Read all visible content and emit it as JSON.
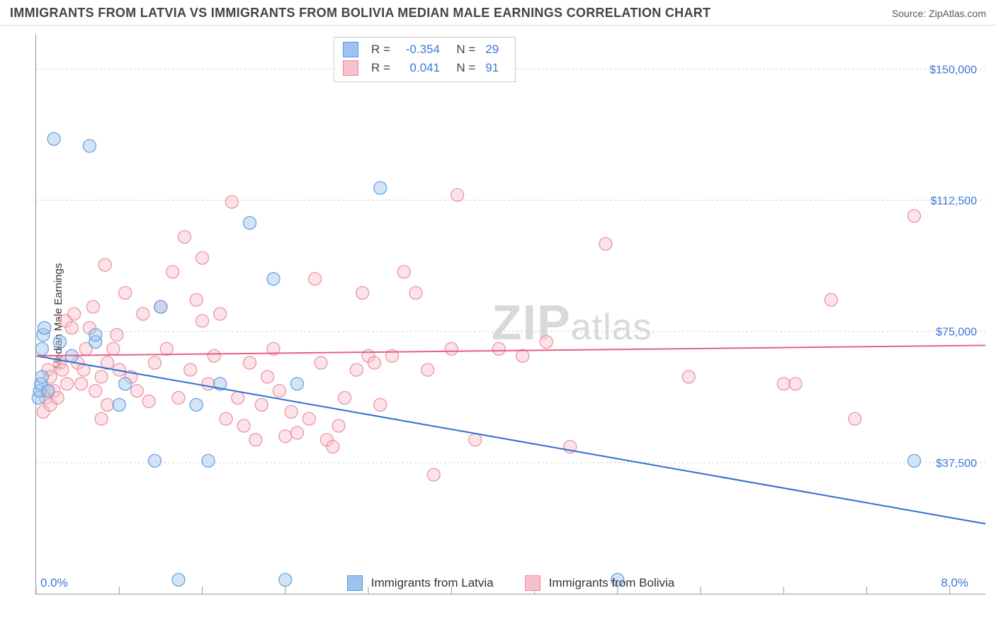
{
  "title": "IMMIGRANTS FROM LATVIA VS IMMIGRANTS FROM BOLIVIA MEDIAN MALE EARNINGS CORRELATION CHART",
  "source_prefix": "Source: ",
  "source_name": "ZipAtlas.com",
  "ylabel": "Median Male Earnings",
  "watermark": "ZIPatlas",
  "chart": {
    "type": "scatter",
    "xlim": [
      0,
      8
    ],
    "ylim": [
      0,
      160000
    ],
    "x_tick_positions": [
      0,
      0.7,
      1.4,
      2.1,
      2.8,
      3.5,
      4.2,
      4.9,
      5.6,
      6.3,
      7.0,
      7.7
    ],
    "y_gridlines": [
      37500,
      75000,
      112500,
      150000
    ],
    "y_ticklabels": [
      "$37,500",
      "$75,000",
      "$112,500",
      "$150,000"
    ],
    "x_min_label": "0.0%",
    "x_max_label": "8.0%",
    "background_color": "#ffffff",
    "grid_color": "#cfcfcf",
    "axis_color": "#999999",
    "tick_label_color": "#3c78d8",
    "point_radius": 9,
    "series": [
      {
        "key": "latvia",
        "name": "Immigrants from Latvia",
        "color_fill": "#9dc3ee",
        "color_stroke": "#5a9bdc",
        "trend_color": "#2f6fd0",
        "R": "-0.354",
        "N": "29",
        "trend": {
          "x1": 0.0,
          "y1": 68000,
          "x2": 8.0,
          "y2": 20000
        },
        "points": [
          {
            "x": 0.02,
            "y": 56000
          },
          {
            "x": 0.03,
            "y": 58000
          },
          {
            "x": 0.04,
            "y": 60000
          },
          {
            "x": 0.05,
            "y": 70000
          },
          {
            "x": 0.06,
            "y": 74000
          },
          {
            "x": 0.07,
            "y": 76000
          },
          {
            "x": 0.1,
            "y": 58000
          },
          {
            "x": 0.15,
            "y": 130000
          },
          {
            "x": 0.2,
            "y": 72000
          },
          {
            "x": 0.3,
            "y": 68000
          },
          {
            "x": 0.45,
            "y": 128000
          },
          {
            "x": 0.5,
            "y": 72000
          },
          {
            "x": 0.5,
            "y": 74000
          },
          {
            "x": 0.7,
            "y": 54000
          },
          {
            "x": 0.75,
            "y": 60000
          },
          {
            "x": 1.0,
            "y": 38000
          },
          {
            "x": 1.05,
            "y": 82000
          },
          {
            "x": 1.2,
            "y": 4000
          },
          {
            "x": 1.35,
            "y": 54000
          },
          {
            "x": 1.45,
            "y": 38000
          },
          {
            "x": 1.55,
            "y": 60000
          },
          {
            "x": 1.8,
            "y": 106000
          },
          {
            "x": 2.0,
            "y": 90000
          },
          {
            "x": 2.1,
            "y": 4000
          },
          {
            "x": 2.2,
            "y": 60000
          },
          {
            "x": 2.9,
            "y": 116000
          },
          {
            "x": 4.9,
            "y": 4000
          },
          {
            "x": 7.4,
            "y": 38000
          },
          {
            "x": 0.05,
            "y": 62000
          }
        ]
      },
      {
        "key": "bolivia",
        "name": "Immigrants from Bolivia",
        "color_fill": "#f7c1cc",
        "color_stroke": "#eb8aa0",
        "trend_color": "#e75f84",
        "R": "0.041",
        "N": "91",
        "trend": {
          "x1": 0.0,
          "y1": 68000,
          "x2": 8.0,
          "y2": 71000
        },
        "points": [
          {
            "x": 0.06,
            "y": 52000
          },
          {
            "x": 0.08,
            "y": 56000
          },
          {
            "x": 0.1,
            "y": 58000
          },
          {
            "x": 0.1,
            "y": 64000
          },
          {
            "x": 0.12,
            "y": 62000
          },
          {
            "x": 0.12,
            "y": 54000
          },
          {
            "x": 0.15,
            "y": 58000
          },
          {
            "x": 0.18,
            "y": 56000
          },
          {
            "x": 0.2,
            "y": 66000
          },
          {
            "x": 0.22,
            "y": 64000
          },
          {
            "x": 0.25,
            "y": 78000
          },
          {
            "x": 0.26,
            "y": 60000
          },
          {
            "x": 0.3,
            "y": 76000
          },
          {
            "x": 0.32,
            "y": 80000
          },
          {
            "x": 0.35,
            "y": 66000
          },
          {
            "x": 0.38,
            "y": 60000
          },
          {
            "x": 0.4,
            "y": 64000
          },
          {
            "x": 0.42,
            "y": 70000
          },
          {
            "x": 0.45,
            "y": 76000
          },
          {
            "x": 0.48,
            "y": 82000
          },
          {
            "x": 0.5,
            "y": 58000
          },
          {
            "x": 0.55,
            "y": 62000
          },
          {
            "x": 0.58,
            "y": 94000
          },
          {
            "x": 0.6,
            "y": 66000
          },
          {
            "x": 0.65,
            "y": 70000
          },
          {
            "x": 0.68,
            "y": 74000
          },
          {
            "x": 0.7,
            "y": 64000
          },
          {
            "x": 0.75,
            "y": 86000
          },
          {
            "x": 0.8,
            "y": 62000
          },
          {
            "x": 0.85,
            "y": 58000
          },
          {
            "x": 0.9,
            "y": 80000
          },
          {
            "x": 0.95,
            "y": 55000
          },
          {
            "x": 1.0,
            "y": 66000
          },
          {
            "x": 1.05,
            "y": 82000
          },
          {
            "x": 1.1,
            "y": 70000
          },
          {
            "x": 1.15,
            "y": 92000
          },
          {
            "x": 1.2,
            "y": 56000
          },
          {
            "x": 1.25,
            "y": 102000
          },
          {
            "x": 1.3,
            "y": 64000
          },
          {
            "x": 1.35,
            "y": 84000
          },
          {
            "x": 1.4,
            "y": 96000
          },
          {
            "x": 1.45,
            "y": 60000
          },
          {
            "x": 1.5,
            "y": 68000
          },
          {
            "x": 1.55,
            "y": 80000
          },
          {
            "x": 1.6,
            "y": 50000
          },
          {
            "x": 1.65,
            "y": 112000
          },
          {
            "x": 1.7,
            "y": 56000
          },
          {
            "x": 1.75,
            "y": 48000
          },
          {
            "x": 1.8,
            "y": 66000
          },
          {
            "x": 1.85,
            "y": 44000
          },
          {
            "x": 1.9,
            "y": 54000
          },
          {
            "x": 1.95,
            "y": 62000
          },
          {
            "x": 2.0,
            "y": 70000
          },
          {
            "x": 2.05,
            "y": 58000
          },
          {
            "x": 2.1,
            "y": 45000
          },
          {
            "x": 2.15,
            "y": 52000
          },
          {
            "x": 2.2,
            "y": 46000
          },
          {
            "x": 2.3,
            "y": 50000
          },
          {
            "x": 2.35,
            "y": 90000
          },
          {
            "x": 2.4,
            "y": 66000
          },
          {
            "x": 2.45,
            "y": 44000
          },
          {
            "x": 2.5,
            "y": 42000
          },
          {
            "x": 2.55,
            "y": 48000
          },
          {
            "x": 2.6,
            "y": 56000
          },
          {
            "x": 2.7,
            "y": 64000
          },
          {
            "x": 2.75,
            "y": 86000
          },
          {
            "x": 2.8,
            "y": 68000
          },
          {
            "x": 2.85,
            "y": 66000
          },
          {
            "x": 2.9,
            "y": 54000
          },
          {
            "x": 3.0,
            "y": 68000
          },
          {
            "x": 3.1,
            "y": 92000
          },
          {
            "x": 3.2,
            "y": 86000
          },
          {
            "x": 3.3,
            "y": 64000
          },
          {
            "x": 3.35,
            "y": 34000
          },
          {
            "x": 3.5,
            "y": 70000
          },
          {
            "x": 3.55,
            "y": 114000
          },
          {
            "x": 3.7,
            "y": 44000
          },
          {
            "x": 3.9,
            "y": 70000
          },
          {
            "x": 4.1,
            "y": 68000
          },
          {
            "x": 4.3,
            "y": 72000
          },
          {
            "x": 4.5,
            "y": 42000
          },
          {
            "x": 4.8,
            "y": 100000
          },
          {
            "x": 5.5,
            "y": 62000
          },
          {
            "x": 6.3,
            "y": 60000
          },
          {
            "x": 6.4,
            "y": 60000
          },
          {
            "x": 6.7,
            "y": 84000
          },
          {
            "x": 6.9,
            "y": 50000
          },
          {
            "x": 7.4,
            "y": 108000
          },
          {
            "x": 1.4,
            "y": 78000
          },
          {
            "x": 0.55,
            "y": 50000
          },
          {
            "x": 0.6,
            "y": 54000
          }
        ]
      }
    ]
  }
}
